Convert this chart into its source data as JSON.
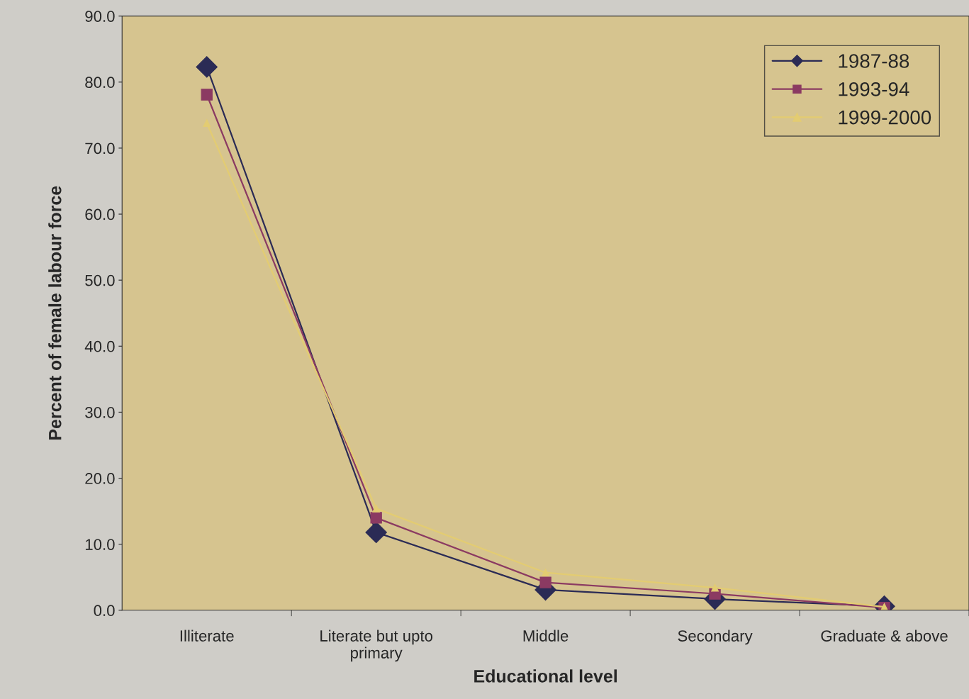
{
  "chart_data": {
    "type": "line",
    "xlabel": "Educational level",
    "ylabel": "Percent of female labour force",
    "categories": [
      "Illiterate",
      "Literate but upto\nprimary",
      "Middle",
      "Secondary",
      "Graduate & above"
    ],
    "series": [
      {
        "name": "1987-88",
        "color": "#2b2b55",
        "marker": "diamond",
        "values": [
          82.3,
          11.8,
          3.1,
          1.7,
          0.6
        ]
      },
      {
        "name": "1993-94",
        "color": "#8b3a62",
        "marker": "square",
        "values": [
          78.1,
          14.0,
          4.2,
          2.5,
          0.4
        ]
      },
      {
        "name": "1999-2000",
        "color": "#e3cc72",
        "marker": "triangle",
        "values": [
          73.8,
          15.4,
          5.7,
          3.4,
          0.5
        ]
      }
    ],
    "ylim": [
      0,
      90
    ],
    "yticks": [
      {
        "value": 0,
        "label": "0.0"
      },
      {
        "value": 10,
        "label": "10.0"
      },
      {
        "value": 20,
        "label": "20.0"
      },
      {
        "value": 30,
        "label": "30.0"
      },
      {
        "value": 40,
        "label": "40.0"
      },
      {
        "value": 50,
        "label": "50.0"
      },
      {
        "value": 60,
        "label": "60.0"
      },
      {
        "value": 70,
        "label": "70.0"
      },
      {
        "value": 80,
        "label": "80.0"
      },
      {
        "value": 90,
        "label": "90.0"
      }
    ],
    "legend": "top right"
  }
}
